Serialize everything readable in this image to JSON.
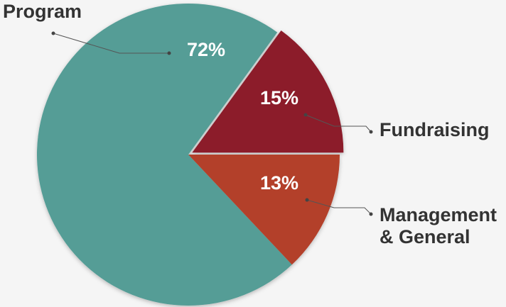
{
  "chart_data": {
    "type": "pie",
    "categories": [
      "Fundraising",
      "Program",
      "Management & General"
    ],
    "values": [
      15,
      72,
      13
    ],
    "value_labels": [
      "15%",
      "72%",
      "13%"
    ],
    "colors": [
      "#8c1b2c",
      "#549d96",
      "#b3402a"
    ]
  }
}
